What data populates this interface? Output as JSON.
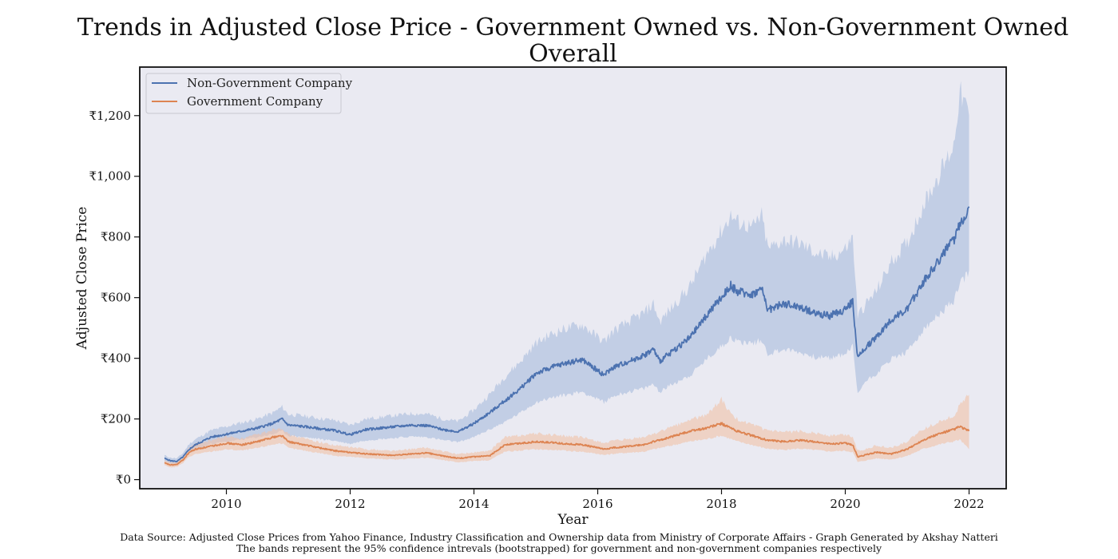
{
  "chart_data": {
    "type": "line",
    "title_line1": "Trends in Adjusted Close Price - Government Owned vs. Non-Government Owned",
    "title_line2": "Overall",
    "xlabel": "Year",
    "ylabel": "Adjusted Close Price",
    "xlim": [
      2008.6,
      2022.6
    ],
    "ylim": [
      -30,
      1360
    ],
    "x_ticks": [
      2010,
      2012,
      2014,
      2016,
      2018,
      2020,
      2022
    ],
    "y_ticks": [
      0,
      200,
      400,
      600,
      800,
      1000,
      1200
    ],
    "y_tick_labels": [
      "₹0",
      "₹200",
      "₹400",
      "₹600",
      "₹800",
      "₹1,000",
      "₹1,200"
    ],
    "grid": false,
    "background": "#eaeaf2",
    "legend_position": "top-left",
    "band_description": "95% confidence interval",
    "x": [
      2009.0,
      2009.1,
      2009.2,
      2009.3,
      2009.4,
      2009.5,
      2009.75,
      2010.0,
      2010.25,
      2010.5,
      2010.75,
      2010.9,
      2011.0,
      2011.25,
      2011.5,
      2011.75,
      2012.0,
      2012.25,
      2012.5,
      2012.75,
      2013.0,
      2013.25,
      2013.5,
      2013.75,
      2014.0,
      2014.25,
      2014.5,
      2014.75,
      2015.0,
      2015.25,
      2015.5,
      2015.75,
      2016.0,
      2016.1,
      2016.25,
      2016.5,
      2016.75,
      2016.9,
      2017.0,
      2017.25,
      2017.5,
      2017.75,
      2018.0,
      2018.15,
      2018.25,
      2018.5,
      2018.65,
      2018.75,
      2019.0,
      2019.25,
      2019.5,
      2019.75,
      2020.0,
      2020.12,
      2020.2,
      2020.3,
      2020.5,
      2020.75,
      2021.0,
      2021.25,
      2021.5,
      2021.75,
      2021.85,
      2022.0
    ],
    "series": [
      {
        "name": "Non-Government Company",
        "color": "#4c72b0",
        "band_color": "#a1b6db",
        "values": [
          70,
          62,
          60,
          75,
          100,
          115,
          140,
          150,
          160,
          170,
          185,
          200,
          180,
          175,
          168,
          162,
          148,
          165,
          170,
          175,
          180,
          178,
          165,
          158,
          185,
          220,
          260,
          300,
          350,
          370,
          385,
          395,
          360,
          345,
          370,
          390,
          410,
          430,
          390,
          430,
          470,
          540,
          600,
          640,
          620,
          610,
          630,
          560,
          580,
          570,
          550,
          540,
          560,
          590,
          400,
          430,
          470,
          530,
          560,
          650,
          720,
          790,
          840,
          900
        ],
        "lower": [
          60,
          52,
          50,
          62,
          85,
          98,
          118,
          125,
          132,
          140,
          150,
          160,
          145,
          140,
          134,
          128,
          118,
          130,
          134,
          138,
          142,
          140,
          130,
          124,
          140,
          165,
          190,
          220,
          255,
          270,
          280,
          290,
          265,
          255,
          275,
          290,
          300,
          315,
          290,
          320,
          345,
          395,
          440,
          470,
          455,
          450,
          460,
          415,
          430,
          420,
          405,
          400,
          415,
          440,
          280,
          320,
          350,
          400,
          420,
          490,
          540,
          590,
          640,
          690
        ],
        "upper": [
          80,
          72,
          70,
          88,
          118,
          133,
          162,
          175,
          188,
          200,
          220,
          240,
          215,
          210,
          202,
          196,
          180,
          200,
          206,
          212,
          218,
          216,
          200,
          192,
          230,
          280,
          340,
          390,
          450,
          480,
          500,
          510,
          470,
          455,
          490,
          520,
          550,
          580,
          520,
          580,
          640,
          740,
          820,
          870,
          850,
          830,
          870,
          760,
          790,
          780,
          750,
          730,
          760,
          800,
          540,
          570,
          620,
          720,
          780,
          900,
          1000,
          1100,
          1280,
          1200
        ]
      },
      {
        "name": "Government Company",
        "color": "#dd8452",
        "band_color": "#f0c2a6",
        "values": [
          55,
          48,
          50,
          65,
          90,
          100,
          110,
          120,
          115,
          125,
          140,
          145,
          125,
          115,
          105,
          95,
          90,
          85,
          82,
          80,
          85,
          88,
          78,
          70,
          75,
          78,
          115,
          120,
          125,
          122,
          118,
          115,
          105,
          100,
          105,
          110,
          115,
          125,
          130,
          145,
          160,
          170,
          185,
          170,
          160,
          145,
          135,
          130,
          125,
          130,
          125,
          118,
          120,
          115,
          75,
          80,
          90,
          85,
          100,
          130,
          150,
          165,
          175,
          160
        ],
        "lower": [
          48,
          40,
          42,
          55,
          76,
          84,
          92,
          100,
          96,
          104,
          116,
          120,
          104,
          96,
          88,
          79,
          75,
          71,
          68,
          66,
          70,
          73,
          64,
          57,
          62,
          64,
          92,
          96,
          100,
          98,
          95,
          92,
          85,
          81,
          85,
          89,
          92,
          100,
          104,
          115,
          126,
          133,
          145,
          134,
          126,
          114,
          106,
          102,
          98,
          102,
          98,
          93,
          95,
          91,
          58,
          62,
          70,
          67,
          78,
          101,
          115,
          126,
          132,
          100
        ],
        "upper": [
          62,
          56,
          58,
          76,
          106,
          118,
          130,
          142,
          136,
          148,
          166,
          172,
          148,
          136,
          124,
          113,
          107,
          101,
          97,
          95,
          101,
          105,
          93,
          84,
          90,
          94,
          140,
          146,
          152,
          148,
          143,
          139,
          127,
          121,
          127,
          133,
          140,
          152,
          158,
          178,
          198,
          212,
          265,
          215,
          200,
          180,
          168,
          162,
          155,
          160,
          155,
          145,
          148,
          142,
          95,
          100,
          112,
          105,
          125,
          165,
          190,
          210,
          245,
          280
        ]
      }
    ]
  },
  "footer": {
    "line1": "Data Source: Adjusted Close Prices from Yahoo Finance, Industry Classification and Ownership data from Ministry of Corporate Affairs  - Graph Generated by Akshay Natteri",
    "line2": "The bands represent the 95% confidence intrevals (bootstrapped) for government and non-government companies respectively"
  }
}
